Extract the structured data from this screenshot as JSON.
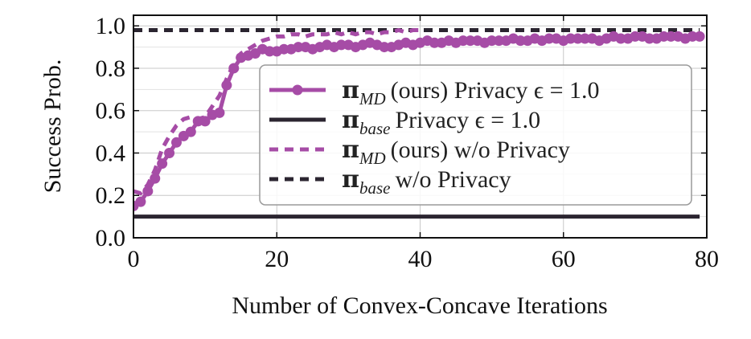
{
  "chart_data": {
    "type": "line",
    "title": "",
    "xlabel": "Number of Convex-Concave Iterations",
    "ylabel": "Success Prob.",
    "xlim": [
      0,
      80
    ],
    "ylim": [
      0.0,
      1.05
    ],
    "xticks": [
      0,
      20,
      40,
      60,
      80
    ],
    "xtick_labels": [
      "0",
      "20",
      "40",
      "60",
      "80"
    ],
    "yticks": [
      0.0,
      0.2,
      0.4,
      0.6,
      0.8,
      1.0
    ],
    "ytick_labels": [
      "0.0",
      "0.2",
      "0.4",
      "0.6",
      "0.8",
      "1.0"
    ],
    "grid": true,
    "legend_position": "center-right",
    "series": [
      {
        "key": "md_privacy",
        "name_symbol": "π",
        "name_sub": "MD",
        "name_rest": "(ours) Privacy ϵ = 1.0",
        "color": "#a64ca6",
        "style": "solid-marker",
        "x": [
          0,
          1,
          2,
          3,
          4,
          5,
          6,
          7,
          8,
          9,
          10,
          11,
          12,
          13,
          14,
          15,
          16,
          17,
          18,
          19,
          20,
          21,
          22,
          23,
          24,
          25,
          26,
          27,
          28,
          29,
          30,
          31,
          32,
          33,
          34,
          35,
          36,
          37,
          38,
          39,
          40,
          41,
          42,
          43,
          44,
          45,
          46,
          47,
          48,
          49,
          50,
          51,
          52,
          53,
          54,
          55,
          56,
          57,
          58,
          59,
          60,
          61,
          62,
          63,
          64,
          65,
          66,
          67,
          68,
          69,
          70,
          71,
          72,
          73,
          74,
          75,
          76,
          77,
          78,
          79
        ],
        "values": [
          0.15,
          0.17,
          0.22,
          0.28,
          0.35,
          0.4,
          0.45,
          0.48,
          0.5,
          0.55,
          0.55,
          0.58,
          0.59,
          0.72,
          0.8,
          0.85,
          0.86,
          0.87,
          0.89,
          0.88,
          0.88,
          0.89,
          0.89,
          0.9,
          0.9,
          0.89,
          0.9,
          0.91,
          0.9,
          0.91,
          0.91,
          0.9,
          0.91,
          0.92,
          0.91,
          0.9,
          0.9,
          0.91,
          0.92,
          0.91,
          0.92,
          0.93,
          0.92,
          0.92,
          0.93,
          0.92,
          0.93,
          0.93,
          0.93,
          0.92,
          0.93,
          0.93,
          0.93,
          0.94,
          0.93,
          0.93,
          0.94,
          0.93,
          0.94,
          0.94,
          0.93,
          0.94,
          0.94,
          0.94,
          0.94,
          0.93,
          0.94,
          0.95,
          0.94,
          0.94,
          0.95,
          0.95,
          0.94,
          0.94,
          0.95,
          0.95,
          0.95,
          0.94,
          0.95,
          0.95
        ]
      },
      {
        "key": "base_privacy",
        "name_symbol": "π",
        "name_sub": "base",
        "name_rest": "Privacy ϵ = 1.0",
        "color": "#2b2530",
        "style": "solid",
        "x": [
          0,
          79
        ],
        "values": [
          0.1,
          0.1
        ]
      },
      {
        "key": "md_noprivacy",
        "name_symbol": "π",
        "name_sub": "MD",
        "name_rest": "(ours) w/o Privacy",
        "color": "#a64ca6",
        "style": "dashed",
        "x": [
          0,
          1,
          2,
          3,
          4,
          5,
          6,
          7,
          8,
          9,
          10,
          11,
          12,
          13,
          14,
          15,
          16,
          17,
          18,
          19,
          20,
          21,
          22,
          23,
          24,
          25,
          26,
          27,
          28,
          29,
          30,
          31,
          32,
          33,
          34,
          35,
          36,
          37,
          38,
          39,
          40
        ],
        "values": [
          0.22,
          0.21,
          0.25,
          0.32,
          0.42,
          0.48,
          0.53,
          0.56,
          0.57,
          0.56,
          0.57,
          0.62,
          0.67,
          0.75,
          0.82,
          0.87,
          0.89,
          0.91,
          0.93,
          0.94,
          0.95,
          0.95,
          0.96,
          0.96,
          0.95,
          0.96,
          0.96,
          0.96,
          0.97,
          0.96,
          0.97,
          0.96,
          0.97,
          0.97,
          0.96,
          0.97,
          0.97,
          0.98,
          0.97,
          0.98,
          0.98
        ]
      },
      {
        "key": "base_noprivacy",
        "name_symbol": "π",
        "name_sub": "base",
        "name_rest": "w/o Privacy",
        "color": "#2b2530",
        "style": "dashed",
        "x": [
          0,
          79
        ],
        "values": [
          0.98,
          0.98
        ]
      }
    ]
  }
}
